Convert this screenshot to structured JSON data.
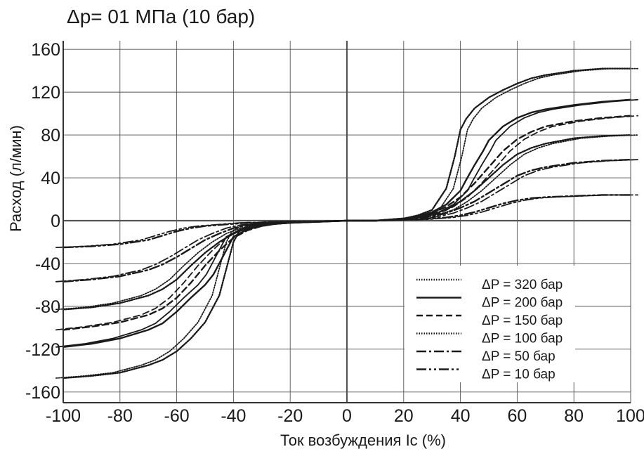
{
  "chart_data": {
    "type": "line",
    "title": "Δp= 01 МПа (10 бар)",
    "xlabel": "Ток возбуждения Ic (%)",
    "ylabel": "Расход (л/мин)",
    "xlim": [
      -100,
      100
    ],
    "ylim": [
      -170,
      168
    ],
    "x_ticks": [
      -100,
      -80,
      -60,
      -40,
      -20,
      0,
      20,
      40,
      60,
      80,
      100
    ],
    "x_tick_labels": [
      "-100",
      "-80",
      "-60",
      "-40",
      "-20",
      "0",
      "20",
      "40",
      "60",
      "80",
      "100"
    ],
    "y_ticks": [
      160,
      120,
      80,
      40,
      0,
      -40,
      -80,
      -120,
      -160
    ],
    "y_tick_labels": [
      "160",
      "120",
      "80",
      "40",
      "0",
      "-40",
      "-80",
      "-120",
      "-160"
    ],
    "grid": true,
    "legend_position": "bottom-right",
    "series": [
      {
        "name": "ΔP = 320 бар",
        "style": "dotted",
        "color": "#1a1a1a",
        "x": [
          -100,
          -90,
          -80,
          -70,
          -65,
          -60,
          -55,
          -50,
          -45,
          -42,
          -40,
          -38,
          -35,
          -30,
          -25,
          -20,
          -10,
          0,
          10,
          20,
          25,
          30,
          35,
          38,
          40,
          42,
          45,
          50,
          55,
          60,
          65,
          70,
          80,
          90,
          100
        ],
        "y": [
          -147,
          -145,
          -142,
          -135,
          -130,
          -122,
          -110,
          -95,
          -70,
          -40,
          -20,
          -10,
          -5,
          -3,
          -2,
          -2,
          -1,
          0,
          0,
          2,
          5,
          10,
          30,
          60,
          85,
          95,
          105,
          115,
          122,
          128,
          133,
          136,
          140,
          142,
          142
        ]
      },
      {
        "name": "ΔP = 200 бар",
        "style": "solid",
        "color": "#1a1a1a",
        "x": [
          -100,
          -90,
          -80,
          -70,
          -65,
          -60,
          -55,
          -50,
          -47,
          -45,
          -42,
          -40,
          -35,
          -30,
          -25,
          -20,
          -10,
          0,
          10,
          20,
          25,
          30,
          35,
          40,
          42,
          45,
          48,
          50,
          55,
          60,
          65,
          70,
          80,
          90,
          100
        ],
        "y": [
          -118,
          -115,
          -110,
          -102,
          -96,
          -85,
          -72,
          -60,
          -50,
          -40,
          -25,
          -15,
          -8,
          -5,
          -3,
          -2,
          -1,
          0,
          0,
          2,
          4,
          8,
          15,
          28,
          38,
          52,
          65,
          75,
          88,
          96,
          101,
          104,
          108,
          111,
          113
        ]
      },
      {
        "name": "ΔP = 150 бар",
        "style": "dashed",
        "color": "#1a1a1a",
        "x": [
          -100,
          -90,
          -80,
          -70,
          -65,
          -60,
          -55,
          -50,
          -45,
          -40,
          -35,
          -30,
          -25,
          -20,
          -10,
          0,
          10,
          20,
          25,
          30,
          35,
          40,
          45,
          50,
          55,
          60,
          65,
          70,
          80,
          90,
          100
        ],
        "y": [
          -102,
          -99,
          -95,
          -88,
          -82,
          -72,
          -58,
          -42,
          -28,
          -16,
          -9,
          -5,
          -3,
          -2,
          -1,
          0,
          0,
          2,
          4,
          7,
          13,
          22,
          35,
          50,
          65,
          76,
          83,
          88,
          93,
          96,
          98
        ]
      },
      {
        "name": "ΔP = 100 бар",
        "style": "dotted",
        "color": "#1a1a1a",
        "x": [
          -100,
          -90,
          -80,
          -70,
          -65,
          -60,
          -55,
          -50,
          -45,
          -40,
          -35,
          -30,
          -25,
          -20,
          -10,
          0,
          10,
          20,
          25,
          30,
          35,
          40,
          45,
          50,
          55,
          60,
          65,
          70,
          80,
          90,
          100
        ],
        "y": [
          -83,
          -81,
          -77,
          -70,
          -64,
          -55,
          -42,
          -30,
          -20,
          -12,
          -7,
          -4,
          -3,
          -2,
          -1,
          0,
          0,
          2,
          4,
          6,
          10,
          18,
          28,
          40,
          52,
          62,
          68,
          72,
          77,
          79,
          80
        ]
      },
      {
        "name": "ΔP = 50 бар",
        "style": "dashdot",
        "color": "#1a1a1a",
        "x": [
          -100,
          -90,
          -80,
          -70,
          -65,
          -60,
          -55,
          -50,
          -45,
          -40,
          -35,
          -30,
          -25,
          -20,
          -10,
          0,
          10,
          20,
          25,
          30,
          35,
          40,
          45,
          50,
          55,
          60,
          65,
          70,
          80,
          90,
          100
        ],
        "y": [
          -57,
          -55,
          -52,
          -46,
          -41,
          -34,
          -26,
          -18,
          -12,
          -7,
          -4,
          -3,
          -2,
          -2,
          -1,
          0,
          0,
          1,
          2,
          4,
          7,
          12,
          18,
          26,
          34,
          42,
          47,
          50,
          54,
          56,
          57
        ]
      },
      {
        "name": "ΔP = 10 бар",
        "style": "dashdotdot",
        "color": "#1a1a1a",
        "x": [
          -100,
          -90,
          -80,
          -70,
          -65,
          -60,
          -55,
          -50,
          -45,
          -40,
          -35,
          -30,
          -25,
          -20,
          -10,
          0,
          10,
          20,
          25,
          30,
          35,
          40,
          45,
          50,
          55,
          60,
          65,
          70,
          80,
          90,
          100
        ],
        "y": [
          -25,
          -24,
          -22,
          -18,
          -14,
          -10,
          -7,
          -5,
          -4,
          -3,
          -2,
          -2,
          -1,
          -1,
          -1,
          0,
          0,
          1,
          1,
          2,
          3,
          5,
          8,
          12,
          16,
          19,
          21,
          22,
          23,
          24,
          24
        ]
      }
    ]
  }
}
